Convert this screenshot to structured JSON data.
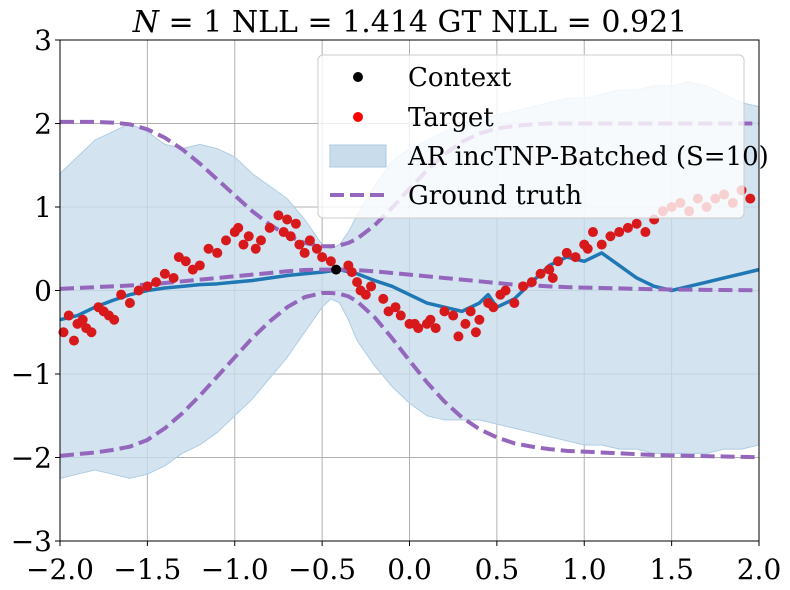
{
  "chart_data": {
    "type": "scatter",
    "title": "N = 1 NLL = 1.414 GT NLL = 0.921",
    "title_parts": {
      "n_symbol": "N",
      "rest": " = 1 NLL = 1.414 GT NLL = 0.921"
    },
    "xlabel": "",
    "ylabel": "",
    "xlim": [
      -2.0,
      2.0
    ],
    "ylim": [
      -3,
      3
    ],
    "grid": true,
    "legend_placement": "upper-right",
    "x_ticks": [
      -2.0,
      -1.5,
      -1.0,
      -0.5,
      0.0,
      0.5,
      1.0,
      1.5,
      2.0
    ],
    "x_tick_labels": [
      "−2.0",
      "−1.5",
      "−1.0",
      "−0.5",
      "0.0",
      "0.5",
      "1.0",
      "1.5",
      "2.0"
    ],
    "y_ticks": [
      -3,
      -2,
      -1,
      0,
      1,
      2,
      3
    ],
    "y_tick_labels": [
      "−3",
      "−2",
      "−1",
      "0",
      "1",
      "2",
      "3"
    ],
    "colors": {
      "context": "#000000",
      "target": "#d7191c",
      "band": "#c8dcec",
      "mean": "#1f77b4",
      "ground_truth": "#9467bd"
    },
    "legend": [
      {
        "key": "context",
        "label": "Context"
      },
      {
        "key": "target",
        "label": "Target"
      },
      {
        "key": "band",
        "label": "AR incTNP-Batched (S=10)"
      },
      {
        "key": "ground_truth",
        "label": "Ground truth"
      }
    ],
    "context_points": [
      {
        "x": -0.42,
        "y": 0.25
      }
    ],
    "target_points": [
      {
        "x": -1.98,
        "y": -0.5
      },
      {
        "x": -1.95,
        "y": -0.3
      },
      {
        "x": -1.92,
        "y": -0.6
      },
      {
        "x": -1.9,
        "y": -0.4
      },
      {
        "x": -1.87,
        "y": -0.35
      },
      {
        "x": -1.85,
        "y": -0.45
      },
      {
        "x": -1.82,
        "y": -0.5
      },
      {
        "x": -1.78,
        "y": -0.2
      },
      {
        "x": -1.75,
        "y": -0.25
      },
      {
        "x": -1.72,
        "y": -0.3
      },
      {
        "x": -1.69,
        "y": -0.35
      },
      {
        "x": -1.65,
        "y": -0.05
      },
      {
        "x": -1.6,
        "y": -0.15
      },
      {
        "x": -1.55,
        "y": 0.0
      },
      {
        "x": -1.5,
        "y": 0.05
      },
      {
        "x": -1.45,
        "y": 0.1
      },
      {
        "x": -1.4,
        "y": 0.2
      },
      {
        "x": -1.35,
        "y": 0.15
      },
      {
        "x": -1.32,
        "y": 0.4
      },
      {
        "x": -1.28,
        "y": 0.35
      },
      {
        "x": -1.24,
        "y": 0.25
      },
      {
        "x": -1.2,
        "y": 0.3
      },
      {
        "x": -1.15,
        "y": 0.5
      },
      {
        "x": -1.1,
        "y": 0.45
      },
      {
        "x": -1.05,
        "y": 0.6
      },
      {
        "x": -1.0,
        "y": 0.7
      },
      {
        "x": -0.98,
        "y": 0.75
      },
      {
        "x": -0.95,
        "y": 0.55
      },
      {
        "x": -0.92,
        "y": 0.65
      },
      {
        "x": -0.88,
        "y": 0.5
      },
      {
        "x": -0.85,
        "y": 0.6
      },
      {
        "x": -0.8,
        "y": 0.75
      },
      {
        "x": -0.75,
        "y": 0.9
      },
      {
        "x": -0.72,
        "y": 0.7
      },
      {
        "x": -0.7,
        "y": 0.85
      },
      {
        "x": -0.68,
        "y": 0.65
      },
      {
        "x": -0.65,
        "y": 0.8
      },
      {
        "x": -0.63,
        "y": 0.55
      },
      {
        "x": -0.6,
        "y": 0.45
      },
      {
        "x": -0.57,
        "y": 0.6
      },
      {
        "x": -0.53,
        "y": 0.5
      },
      {
        "x": -0.5,
        "y": 0.4
      },
      {
        "x": -0.45,
        "y": 0.35
      },
      {
        "x": -0.35,
        "y": 0.3
      },
      {
        "x": -0.33,
        "y": 0.22
      },
      {
        "x": -0.3,
        "y": 0.1
      },
      {
        "x": -0.28,
        "y": 0.0
      },
      {
        "x": -0.25,
        "y": -0.05
      },
      {
        "x": -0.22,
        "y": 0.05
      },
      {
        "x": -0.15,
        "y": -0.1
      },
      {
        "x": -0.12,
        "y": -0.25
      },
      {
        "x": -0.08,
        "y": -0.2
      },
      {
        "x": -0.05,
        "y": -0.3
      },
      {
        "x": 0.0,
        "y": -0.4
      },
      {
        "x": 0.03,
        "y": -0.4
      },
      {
        "x": 0.05,
        "y": -0.45
      },
      {
        "x": 0.1,
        "y": -0.4
      },
      {
        "x": 0.12,
        "y": -0.35
      },
      {
        "x": 0.15,
        "y": -0.45
      },
      {
        "x": 0.2,
        "y": -0.25
      },
      {
        "x": 0.25,
        "y": -0.3
      },
      {
        "x": 0.28,
        "y": -0.55
      },
      {
        "x": 0.32,
        "y": -0.4
      },
      {
        "x": 0.35,
        "y": -0.25
      },
      {
        "x": 0.38,
        "y": -0.5
      },
      {
        "x": 0.4,
        "y": -0.35
      },
      {
        "x": 0.45,
        "y": -0.15
      },
      {
        "x": 0.48,
        "y": -0.2
      },
      {
        "x": 0.52,
        "y": -0.05
      },
      {
        "x": 0.55,
        "y": 0.0
      },
      {
        "x": 0.6,
        "y": -0.15
      },
      {
        "x": 0.65,
        "y": 0.05
      },
      {
        "x": 0.7,
        "y": 0.1
      },
      {
        "x": 0.75,
        "y": 0.2
      },
      {
        "x": 0.8,
        "y": 0.25
      },
      {
        "x": 0.82,
        "y": 0.15
      },
      {
        "x": 0.85,
        "y": 0.35
      },
      {
        "x": 0.9,
        "y": 0.45
      },
      {
        "x": 0.95,
        "y": 0.4
      },
      {
        "x": 1.0,
        "y": 0.55
      },
      {
        "x": 1.02,
        "y": 0.5
      },
      {
        "x": 1.05,
        "y": 0.7
      },
      {
        "x": 1.1,
        "y": 0.55
      },
      {
        "x": 1.15,
        "y": 0.65
      },
      {
        "x": 1.2,
        "y": 0.7
      },
      {
        "x": 1.25,
        "y": 0.75
      },
      {
        "x": 1.3,
        "y": 0.8
      },
      {
        "x": 1.35,
        "y": 0.7
      },
      {
        "x": 1.4,
        "y": 0.85
      },
      {
        "x": 1.45,
        "y": 0.95
      },
      {
        "x": 1.5,
        "y": 1.0
      },
      {
        "x": 1.55,
        "y": 1.05
      },
      {
        "x": 1.6,
        "y": 0.95
      },
      {
        "x": 1.65,
        "y": 1.1
      },
      {
        "x": 1.7,
        "y": 1.0
      },
      {
        "x": 1.75,
        "y": 1.1
      },
      {
        "x": 1.8,
        "y": 1.15
      },
      {
        "x": 1.85,
        "y": 1.05
      },
      {
        "x": 1.9,
        "y": 1.2
      },
      {
        "x": 1.95,
        "y": 1.1
      }
    ],
    "band": {
      "x": [
        -2.0,
        -1.9,
        -1.8,
        -1.7,
        -1.6,
        -1.5,
        -1.4,
        -1.3,
        -1.2,
        -1.1,
        -1.0,
        -0.9,
        -0.8,
        -0.7,
        -0.6,
        -0.5,
        -0.45,
        -0.4,
        -0.35,
        -0.3,
        -0.2,
        -0.1,
        0.0,
        0.1,
        0.2,
        0.3,
        0.4,
        0.5,
        0.6,
        0.7,
        0.8,
        0.9,
        1.0,
        1.1,
        1.2,
        1.3,
        1.4,
        1.5,
        1.6,
        1.7,
        1.8,
        1.9,
        2.0
      ],
      "upper": [
        1.4,
        1.6,
        1.8,
        1.9,
        2.0,
        1.9,
        1.75,
        1.7,
        1.75,
        1.7,
        1.6,
        1.4,
        1.25,
        1.1,
        0.85,
        0.55,
        0.5,
        0.55,
        0.7,
        0.9,
        1.25,
        1.55,
        1.7,
        1.8,
        1.9,
        2.0,
        2.05,
        2.1,
        2.15,
        2.2,
        2.25,
        2.3,
        2.3,
        2.35,
        2.4,
        2.4,
        2.45,
        2.45,
        2.5,
        2.45,
        2.35,
        2.25,
        2.2
      ],
      "lower": [
        -2.25,
        -2.2,
        -2.15,
        -2.2,
        -2.25,
        -2.2,
        -2.1,
        -1.95,
        -1.85,
        -1.7,
        -1.5,
        -1.3,
        -1.05,
        -0.8,
        -0.5,
        -0.2,
        -0.1,
        -0.15,
        -0.35,
        -0.6,
        -0.9,
        -1.15,
        -1.35,
        -1.5,
        -1.55,
        -1.55,
        -1.55,
        -1.6,
        -1.65,
        -1.7,
        -1.75,
        -1.8,
        -1.85,
        -1.85,
        -1.9,
        -1.9,
        -1.95,
        -1.95,
        -1.95,
        -1.95,
        -1.9,
        -1.9,
        -1.85
      ]
    },
    "mean": {
      "x": [
        -2.0,
        -1.9,
        -1.8,
        -1.7,
        -1.6,
        -1.5,
        -1.4,
        -1.3,
        -1.2,
        -1.1,
        -1.0,
        -0.9,
        -0.8,
        -0.7,
        -0.6,
        -0.5,
        -0.4,
        -0.3,
        -0.2,
        -0.1,
        0.0,
        0.1,
        0.2,
        0.3,
        0.4,
        0.45,
        0.5,
        0.6,
        0.7,
        0.8,
        0.9,
        1.0,
        1.1,
        1.2,
        1.3,
        1.4,
        1.5,
        1.6,
        1.7,
        1.8,
        1.9,
        2.0
      ],
      "y": [
        -0.35,
        -0.3,
        -0.2,
        -0.12,
        -0.05,
        0.0,
        0.03,
        0.05,
        0.07,
        0.08,
        0.1,
        0.12,
        0.15,
        0.18,
        0.2,
        0.22,
        0.25,
        0.2,
        0.12,
        0.05,
        -0.05,
        -0.15,
        -0.2,
        -0.25,
        -0.15,
        -0.05,
        -0.2,
        -0.1,
        0.1,
        0.3,
        0.4,
        0.35,
        0.45,
        0.3,
        0.15,
        0.05,
        0.0,
        0.05,
        0.1,
        0.15,
        0.2,
        0.25
      ]
    },
    "ground_truth": {
      "x": [
        -2.0,
        -1.9,
        -1.8,
        -1.7,
        -1.6,
        -1.5,
        -1.4,
        -1.3,
        -1.2,
        -1.1,
        -1.0,
        -0.9,
        -0.8,
        -0.7,
        -0.6,
        -0.5,
        -0.45,
        -0.4,
        -0.35,
        -0.3,
        -0.2,
        -0.1,
        0.0,
        0.1,
        0.2,
        0.3,
        0.4,
        0.5,
        0.6,
        0.7,
        0.8,
        0.9,
        1.0,
        1.1,
        1.2,
        1.3,
        1.4,
        1.5,
        1.6,
        1.7,
        1.8,
        1.9,
        2.0
      ],
      "mean": [
        0.02,
        0.03,
        0.04,
        0.05,
        0.06,
        0.07,
        0.09,
        0.11,
        0.13,
        0.15,
        0.17,
        0.19,
        0.21,
        0.23,
        0.245,
        0.25,
        0.25,
        0.25,
        0.25,
        0.245,
        0.23,
        0.21,
        0.19,
        0.17,
        0.15,
        0.13,
        0.11,
        0.09,
        0.07,
        0.06,
        0.05,
        0.04,
        0.035,
        0.03,
        0.025,
        0.02,
        0.015,
        0.012,
        0.01,
        0.008,
        0.006,
        0.004,
        0.002
      ],
      "upper": [
        2.02,
        2.02,
        2.02,
        2.01,
        1.99,
        1.93,
        1.83,
        1.69,
        1.52,
        1.33,
        1.14,
        0.95,
        0.79,
        0.66,
        0.57,
        0.53,
        0.53,
        0.54,
        0.57,
        0.62,
        0.78,
        0.99,
        1.22,
        1.44,
        1.63,
        1.78,
        1.88,
        1.94,
        1.97,
        1.99,
        2.0,
        2.0,
        2.0,
        2.0,
        2.0,
        2.0,
        2.0,
        2.0,
        2.0,
        2.0,
        2.0,
        2.0,
        2.0
      ],
      "lower": [
        -1.98,
        -1.96,
        -1.94,
        -1.91,
        -1.87,
        -1.79,
        -1.65,
        -1.47,
        -1.26,
        -1.03,
        -0.8,
        -0.57,
        -0.37,
        -0.2,
        -0.08,
        -0.03,
        -0.03,
        -0.04,
        -0.07,
        -0.13,
        -0.32,
        -0.57,
        -0.84,
        -1.1,
        -1.33,
        -1.52,
        -1.66,
        -1.76,
        -1.83,
        -1.87,
        -1.9,
        -1.92,
        -1.93,
        -1.94,
        -1.95,
        -1.96,
        -1.97,
        -1.976,
        -1.98,
        -1.984,
        -1.988,
        -1.992,
        -1.996
      ]
    }
  }
}
